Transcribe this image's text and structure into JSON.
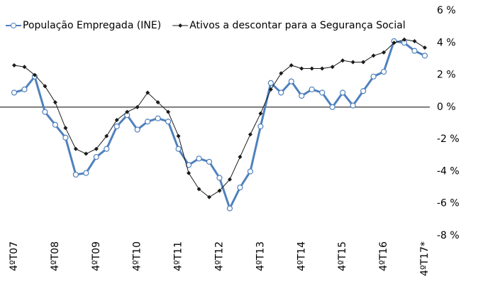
{
  "chart_data": {
    "type": "line",
    "categories": [
      "4ºT07",
      null,
      null,
      null,
      "4ºT08",
      null,
      null,
      null,
      "4ºT09",
      null,
      null,
      null,
      "4ºT10",
      null,
      null,
      null,
      "4ºT11",
      null,
      null,
      null,
      "4ºT12",
      null,
      null,
      null,
      "4ºT13",
      null,
      null,
      null,
      "4ºT14",
      null,
      null,
      null,
      "4ºT15",
      null,
      null,
      null,
      "4ºT16",
      null,
      null,
      null,
      "4ºT17*"
    ],
    "series": [
      {
        "name": "População Empregada (INE)",
        "color": "#4f81bd",
        "marker": "circle",
        "values": [
          0.9,
          1.1,
          1.9,
          -0.3,
          -1.1,
          -1.9,
          -4.2,
          -4.1,
          -3.1,
          -2.6,
          -1.2,
          -0.5,
          -1.4,
          -0.9,
          -0.7,
          -0.9,
          -2.6,
          -3.6,
          -3.2,
          -3.4,
          -4.4,
          -6.3,
          -5.0,
          -4.0,
          -1.2,
          1.5,
          0.9,
          1.6,
          0.7,
          1.1,
          0.9,
          0.0,
          0.9,
          0.1,
          1.0,
          1.9,
          2.2,
          4.1,
          4.0,
          3.5,
          3.2
        ]
      },
      {
        "name": "Ativos a descontar para a Segurança Social",
        "color": "#1a1a1a",
        "marker": "diamond",
        "values": [
          2.6,
          2.5,
          2.0,
          1.3,
          0.3,
          -1.3,
          -2.6,
          -2.9,
          -2.6,
          -1.8,
          -0.8,
          -0.3,
          0.0,
          0.9,
          0.3,
          -0.3,
          -1.8,
          -4.1,
          -5.1,
          -5.6,
          -5.2,
          -4.5,
          -3.1,
          -1.7,
          -0.4,
          1.1,
          2.1,
          2.6,
          2.4,
          2.4,
          2.4,
          2.5,
          2.9,
          2.8,
          2.8,
          3.2,
          3.4,
          4.0,
          4.2,
          4.1,
          3.7
        ]
      }
    ],
    "ylim": [
      -8,
      6
    ],
    "yticks": [
      {
        "value": -8,
        "label": "-8 %"
      },
      {
        "value": -6,
        "label": "-6 %"
      },
      {
        "value": -4,
        "label": "-4 %"
      },
      {
        "value": -2,
        "label": "-2 %"
      },
      {
        "value": 0,
        "label": "0 %"
      },
      {
        "value": 2,
        "label": "2 %"
      },
      {
        "value": 4,
        "label": "4 %"
      },
      {
        "value": 6,
        "label": "6 %"
      }
    ],
    "grid": false,
    "legend": "top"
  }
}
